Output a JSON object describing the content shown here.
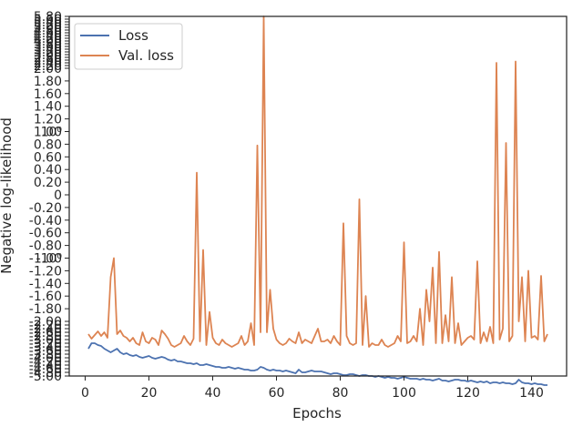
{
  "chart_data": {
    "type": "line",
    "xlabel": "Epochs",
    "ylabel": "Negative log-likelihood",
    "xlim": [
      -5,
      151
    ],
    "x_ticks": [
      0,
      20,
      40,
      60,
      80,
      100,
      120,
      140
    ],
    "y_scale": "symlog",
    "y_ticks_dense": [
      "-5.00",
      "-4.80",
      "-4.60",
      "-4.40",
      "-4.20",
      "-4.00",
      "-3.80",
      "-3.60",
      "-3.40",
      "-3.20",
      "-3.00",
      "-2.80",
      "-2.60",
      "-2.40",
      "-2.20",
      "-2.00"
    ],
    "y_ticks_linear": [
      "-1.80",
      "-1.60",
      "-1.40",
      "-1.20",
      "-1.00",
      "-0.80",
      "-0.60",
      "-0.40",
      "-0.20",
      "0",
      "0.20",
      "0.40",
      "0.60",
      "0.80",
      "1.00",
      "1.20",
      "1.40",
      "1.60",
      "1.80",
      "2.00"
    ],
    "y_ticks_top_dense": [
      "2.20",
      "2.40",
      "2.60",
      "2.80",
      "3.00",
      "3.20",
      "3.40",
      "3.60",
      "3.80",
      "4.00",
      "4.20",
      "4.40",
      "4.60",
      "4.80",
      "5.00",
      "5.20",
      "5.40",
      "5.60",
      "5.80"
    ],
    "y_ticks_special": [
      "-10⁰",
      "10⁰"
    ],
    "legend_position": "top-left",
    "grid": false,
    "series": [
      {
        "name": "Loss",
        "color": "#4c72b0",
        "x": [
          1,
          2,
          3,
          4,
          5,
          6,
          7,
          8,
          9,
          10,
          11,
          12,
          13,
          14,
          15,
          16,
          17,
          18,
          19,
          20,
          21,
          22,
          23,
          24,
          25,
          26,
          27,
          28,
          29,
          30,
          31,
          32,
          33,
          34,
          35,
          36,
          37,
          38,
          39,
          40,
          41,
          42,
          43,
          44,
          45,
          46,
          47,
          48,
          49,
          50,
          51,
          52,
          53,
          54,
          55,
          56,
          57,
          58,
          59,
          60,
          61,
          62,
          63,
          64,
          65,
          66,
          67,
          68,
          69,
          70,
          71,
          72,
          73,
          74,
          75,
          76,
          77,
          78,
          79,
          80,
          81,
          82,
          83,
          84,
          85,
          86,
          87,
          88,
          89,
          90,
          91,
          92,
          93,
          94,
          95,
          96,
          97,
          98,
          99,
          100,
          101,
          102,
          103,
          104,
          105,
          106,
          107,
          108,
          109,
          110,
          111,
          112,
          113,
          114,
          115,
          116,
          117,
          118,
          119,
          120,
          121,
          122,
          123,
          124,
          125,
          126,
          127,
          128,
          129,
          130,
          131,
          132,
          133,
          134,
          135,
          136,
          137,
          138,
          139,
          140,
          141,
          142,
          143,
          144,
          145
        ],
        "values": [
          -3.5,
          -3.2,
          -3.2,
          -3.3,
          -3.35,
          -3.5,
          -3.6,
          -3.7,
          -3.6,
          -3.5,
          -3.7,
          -3.8,
          -3.75,
          -3.85,
          -3.9,
          -3.85,
          -3.95,
          -4.0,
          -3.95,
          -3.9,
          -4.0,
          -4.05,
          -4.0,
          -3.95,
          -4.0,
          -4.1,
          -4.15,
          -4.1,
          -4.2,
          -4.2,
          -4.25,
          -4.3,
          -4.3,
          -4.35,
          -4.3,
          -4.4,
          -4.4,
          -4.35,
          -4.4,
          -4.45,
          -4.5,
          -4.5,
          -4.55,
          -4.55,
          -4.5,
          -4.55,
          -4.6,
          -4.55,
          -4.6,
          -4.65,
          -4.65,
          -4.7,
          -4.7,
          -4.65,
          -4.5,
          -4.55,
          -4.65,
          -4.7,
          -4.65,
          -4.7,
          -4.7,
          -4.75,
          -4.7,
          -4.75,
          -4.8,
          -4.85,
          -4.65,
          -4.8,
          -4.8,
          -4.75,
          -4.7,
          -4.75,
          -4.75,
          -4.75,
          -4.8,
          -4.85,
          -4.9,
          -4.85,
          -4.85,
          -4.9,
          -4.95,
          -4.95,
          -4.9,
          -4.9,
          -4.95,
          -5.0,
          -4.95,
          -4.95,
          -5.0,
          -5.0,
          -5.05,
          -5.0,
          -5.05,
          -5.1,
          -5.05,
          -5.1,
          -5.1,
          -5.15,
          -5.1,
          -5.05,
          -5.1,
          -5.15,
          -5.15,
          -5.15,
          -5.2,
          -5.15,
          -5.2,
          -5.2,
          -5.25,
          -5.2,
          -5.15,
          -5.25,
          -5.25,
          -5.3,
          -5.25,
          -5.2,
          -5.2,
          -5.25,
          -5.25,
          -5.3,
          -5.25,
          -5.3,
          -5.35,
          -5.3,
          -5.35,
          -5.3,
          -5.4,
          -5.35,
          -5.35,
          -5.4,
          -5.35,
          -5.4,
          -5.4,
          -5.45,
          -5.4,
          -5.2,
          -5.35,
          -5.4,
          -5.4,
          -5.45,
          -5.4,
          -5.45,
          -5.45,
          -5.5,
          -5.5
        ]
      },
      {
        "name": "Val. loss",
        "color": "#dd8452",
        "x": [
          1,
          2,
          3,
          4,
          5,
          6,
          7,
          8,
          9,
          10,
          11,
          12,
          13,
          14,
          15,
          16,
          17,
          18,
          19,
          20,
          21,
          22,
          23,
          24,
          25,
          26,
          27,
          28,
          29,
          30,
          31,
          32,
          33,
          34,
          35,
          36,
          37,
          38,
          39,
          40,
          41,
          42,
          43,
          44,
          45,
          46,
          47,
          48,
          49,
          50,
          51,
          52,
          53,
          54,
          55,
          56,
          57,
          58,
          59,
          60,
          61,
          62,
          63,
          64,
          65,
          66,
          67,
          68,
          69,
          70,
          71,
          72,
          73,
          74,
          75,
          76,
          77,
          78,
          79,
          80,
          81,
          82,
          83,
          84,
          85,
          86,
          87,
          88,
          89,
          90,
          91,
          92,
          93,
          94,
          95,
          96,
          97,
          98,
          99,
          100,
          101,
          102,
          103,
          104,
          105,
          106,
          107,
          108,
          109,
          110,
          111,
          112,
          113,
          114,
          115,
          116,
          117,
          118,
          119,
          120,
          121,
          122,
          123,
          124,
          125,
          126,
          127,
          128,
          129,
          130,
          131,
          132,
          133,
          134,
          135,
          136,
          137,
          138,
          139,
          140,
          141,
          142,
          143,
          144,
          145
        ],
        "values": [
          -2.7,
          -2.95,
          -2.75,
          -2.55,
          -2.8,
          -2.6,
          -2.9,
          -1.3,
          -1.0,
          -2.7,
          -2.5,
          -2.8,
          -2.9,
          -3.1,
          -2.9,
          -3.2,
          -3.3,
          -2.6,
          -3.1,
          -3.2,
          -2.9,
          -3.0,
          -3.3,
          -2.5,
          -2.7,
          -2.95,
          -3.3,
          -3.4,
          -3.3,
          -3.2,
          -2.8,
          -3.1,
          -3.3,
          -2.95,
          0.35,
          -3.1,
          -0.87,
          -3.3,
          -1.85,
          -2.9,
          -3.2,
          -3.3,
          -3.0,
          -3.2,
          -3.3,
          -3.4,
          -3.3,
          -3.2,
          -2.8,
          -3.3,
          -3.1,
          -2.1,
          -3.3,
          0.78,
          -2.6,
          5.8,
          -2.6,
          -1.5,
          -2.4,
          -3.0,
          -3.2,
          -3.3,
          -3.2,
          -2.95,
          -3.1,
          -3.2,
          -2.6,
          -3.2,
          -3.0,
          -3.1,
          -3.2,
          -2.8,
          -2.4,
          -3.1,
          -3.1,
          -3.0,
          -3.2,
          -2.8,
          -3.1,
          -3.3,
          -0.45,
          -2.8,
          -3.2,
          -3.3,
          -3.2,
          -0.07,
          -3.3,
          -1.6,
          -3.4,
          -3.2,
          -3.3,
          -3.3,
          -3.0,
          -3.3,
          -3.4,
          -3.3,
          -3.2,
          -2.8,
          -3.1,
          -0.75,
          -3.2,
          -3.1,
          -2.8,
          -3.1,
          -1.8,
          -3.3,
          -1.5,
          -2.0,
          -1.15,
          -3.2,
          -0.9,
          -3.2,
          -1.9,
          -3.1,
          -1.3,
          -3.2,
          -2.1,
          -3.3,
          -3.1,
          -2.9,
          -2.8,
          -3.0,
          -1.05,
          -3.2,
          -2.6,
          -3.1,
          -2.3,
          -3.2,
          2.4,
          -3.0,
          -2.4,
          0.82,
          -3.1,
          -2.8,
          2.5,
          -2.0,
          -1.3,
          -3.1,
          -1.2,
          -2.9,
          -2.8,
          -3.0,
          -1.28,
          -3.1,
          -2.7
        ]
      }
    ]
  }
}
